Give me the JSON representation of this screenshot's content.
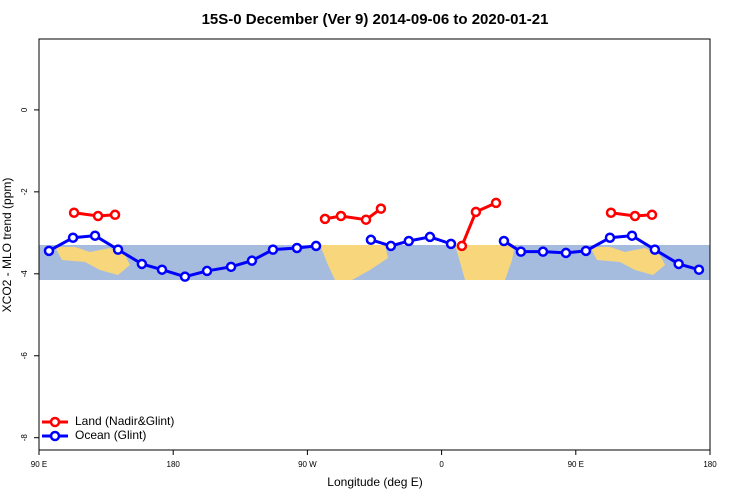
{
  "chart_data": {
    "type": "line",
    "title": "15S-0 December (Ver 9)   2014-09-06 to 2020-01-21",
    "x_label": "Longitude (deg E)",
    "y_label": "XCO2 - MLO trend (ppm)",
    "xlim": [
      90,
      540
    ],
    "ylim": [
      -8.3,
      1.73
    ],
    "xticks": [
      {
        "value": 90,
        "label": "90 E"
      },
      180,
      {
        "value": 270,
        "label": "90 W"
      },
      {
        "value": 360,
        "label": "0"
      },
      {
        "value": 450,
        "label": "90 E"
      },
      {
        "value": 540,
        "label": "180"
      }
    ],
    "yticks": [
      0,
      -2,
      -4,
      -6,
      -8
    ],
    "legend": "bottom-left",
    "series": [
      {
        "name": "Land (Nadir&Glint)",
        "color": "#ff0000",
        "x": [
          113.5,
          129.6,
          141,
          null,
          281.8,
          292.5,
          309.3,
          319.3,
          null,
          373.6,
          383,
          396.5,
          null,
          473.6,
          489.7,
          501.1
        ],
        "values": [
          -2.51,
          -2.59,
          -2.56,
          null,
          -2.66,
          -2.59,
          -2.68,
          -2.41,
          null,
          -3.32,
          -2.49,
          -2.27,
          null,
          -2.51,
          -2.59,
          -2.56
        ]
      },
      {
        "name": "Ocean (Glint)",
        "color": "#0000ff",
        "x": [
          96.7,
          112.8,
          127.6,
          143,
          159,
          172.5,
          187.9,
          202.7,
          218.8,
          232.8,
          246.9,
          263,
          275.8,
          null,
          312.6,
          326,
          338,
          352.2,
          366.3,
          null,
          401.8,
          413.2,
          428,
          443.4,
          456.8,
          472.9,
          487.7,
          503,
          519,
          532.6
        ],
        "values": [
          -3.44,
          -3.12,
          -3.07,
          -3.41,
          -3.76,
          -3.9,
          -4.07,
          -3.93,
          -3.83,
          -3.68,
          -3.41,
          -3.37,
          -3.32,
          null,
          -3.17,
          -3.32,
          -3.2,
          -3.1,
          -3.27,
          null,
          -3.2,
          -3.46,
          -3.46,
          -3.49,
          -3.44,
          -3.12,
          -3.07,
          -3.41,
          -3.76,
          -3.9
        ]
      }
    ]
  }
}
